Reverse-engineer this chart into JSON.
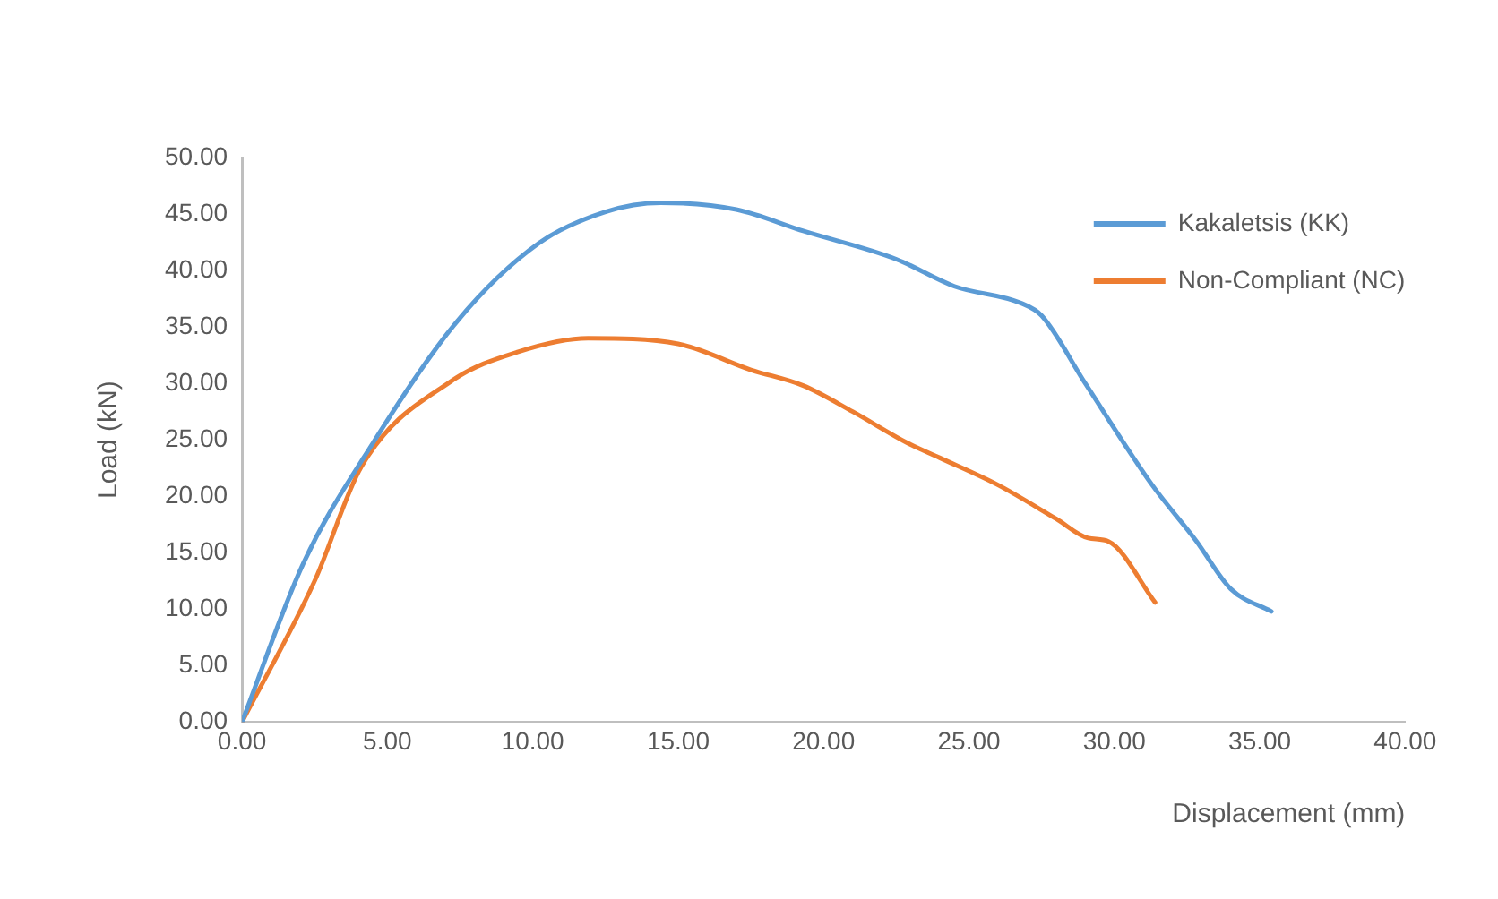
{
  "chart_data": {
    "type": "line",
    "xlabel": "Displacement (mm)",
    "ylabel": "Load (kN)",
    "xlim": [
      0,
      40
    ],
    "xticks": [
      {
        "value": 0,
        "label": "0.00"
      },
      {
        "value": 5,
        "label": "5.00"
      },
      {
        "value": 10,
        "label": "10.00"
      },
      {
        "value": 15,
        "label": "15.00"
      },
      {
        "value": 20,
        "label": "20.00"
      },
      {
        "value": 25,
        "label": "25.00"
      },
      {
        "value": 30,
        "label": "30.00"
      },
      {
        "value": 35,
        "label": "35.00"
      },
      {
        "value": 40,
        "label": "40.00"
      }
    ],
    "ylim": [
      0,
      50
    ],
    "yticks": [
      {
        "value": 0,
        "label": "0.00"
      },
      {
        "value": 5,
        "label": "5.00"
      },
      {
        "value": 10,
        "label": "10.00"
      },
      {
        "value": 15,
        "label": "15.00"
      },
      {
        "value": 20,
        "label": "20.00"
      },
      {
        "value": 25,
        "label": "25.00"
      },
      {
        "value": 30,
        "label": "30.00"
      },
      {
        "value": 35,
        "label": "35.00"
      },
      {
        "value": 40,
        "label": "40.00"
      },
      {
        "value": 45,
        "label": "45.00"
      },
      {
        "value": 50,
        "label": "50.00"
      }
    ],
    "grid": false,
    "legend": "top right",
    "marker": "none",
    "line_style": "solid",
    "series": [
      {
        "name": "Kakaletsis (KK)",
        "color": "#5b9bd5",
        "x": [
          0,
          2.1,
          4.5,
          7.4,
          10.2,
          12.5,
          14.4,
          17,
          19.3,
          22.5,
          24.5,
          26.8,
          27.5,
          29,
          31.3,
          32.8,
          34,
          35.4
        ],
        "values": [
          0,
          14,
          24.7,
          35.5,
          42.4,
          45.2,
          46,
          45.4,
          43.5,
          41,
          38.6,
          37.1,
          36,
          30,
          21,
          16.1,
          11.8,
          9.8
        ]
      },
      {
        "name": "Non-Compliant (NC)",
        "color": "#ed7d31",
        "x": [
          0,
          2.5,
          4.1,
          7.2,
          9.5,
          11.9,
          15,
          17.5,
          19.3,
          21,
          22.9,
          24,
          26,
          28,
          29.1,
          29.8,
          31.4
        ],
        "values": [
          0,
          12.5,
          22.6,
          30.2,
          32.8,
          34,
          33.5,
          31.2,
          29.8,
          27.5,
          24.7,
          23.4,
          21,
          18,
          16.3,
          16,
          10.6
        ]
      }
    ]
  }
}
